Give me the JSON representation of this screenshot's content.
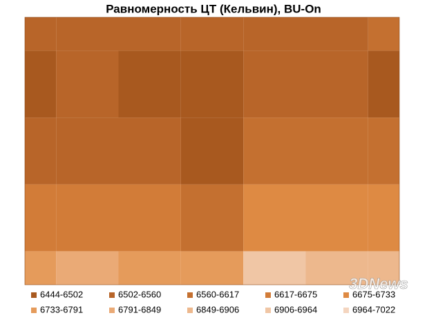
{
  "chart_data": {
    "type": "contour",
    "title": "Равномерность ЦТ (Кельвин), BU-On",
    "levels": [
      6444,
      6502,
      6560,
      6617,
      6675,
      6733,
      6791,
      6849,
      6906,
      6964,
      7022
    ],
    "level_labels": [
      "6444-6502",
      "6502-6560",
      "6560-6617",
      "6617-6675",
      "6675-6733",
      "6733-6791",
      "6791-6849",
      "6849-6906",
      "6906-6964",
      "6964-7022"
    ],
    "colors": [
      "#a8591f",
      "#b86529",
      "#c47030",
      "#d27c38",
      "#de8a43",
      "#e59b5b",
      "#eaaa76",
      "#edb88d",
      "#f0c6a5",
      "#f4d5bf"
    ],
    "z": [
      [
        6540,
        6540,
        6560,
        6560,
        6550,
        6560,
        6570
      ],
      [
        6480,
        6540,
        6500,
        6480,
        6540,
        6560,
        6500
      ],
      [
        6540,
        6560,
        6540,
        6500,
        6600,
        6600,
        6600
      ],
      [
        6620,
        6620,
        6630,
        6600,
        6680,
        6700,
        6700
      ],
      [
        6760,
        6800,
        6770,
        6740,
        6950,
        6900,
        6880
      ]
    ],
    "watermark": "3DNews"
  }
}
